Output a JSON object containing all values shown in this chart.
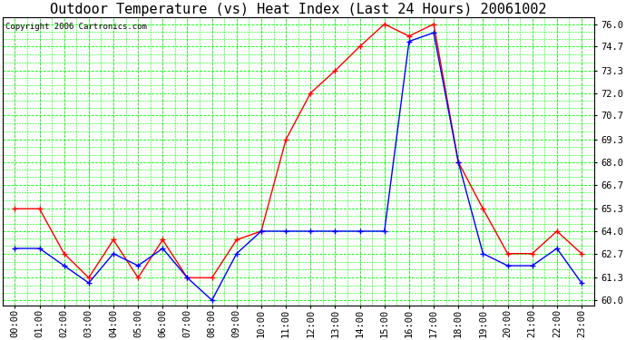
{
  "title": "Outdoor Temperature (vs) Heat Index (Last 24 Hours) 20061002",
  "copyright": "Copyright 2006 Cartronics.com",
  "x_labels": [
    "00:00",
    "01:00",
    "02:00",
    "03:00",
    "04:00",
    "05:00",
    "06:00",
    "07:00",
    "08:00",
    "09:00",
    "10:00",
    "11:00",
    "12:00",
    "13:00",
    "14:00",
    "15:00",
    "16:00",
    "17:00",
    "18:00",
    "19:00",
    "20:00",
    "21:00",
    "22:00",
    "23:00"
  ],
  "y_ticks": [
    60.0,
    61.3,
    62.7,
    64.0,
    65.3,
    66.7,
    68.0,
    69.3,
    70.7,
    72.0,
    73.3,
    74.7,
    76.0
  ],
  "ylim": [
    59.7,
    76.4
  ],
  "temp_color": "#0000FF",
  "heat_color": "#FF0000",
  "bg_color": "#FFFFFF",
  "grid_color": "#00FF00",
  "temp_data": [
    63.0,
    63.0,
    62.0,
    61.0,
    62.7,
    62.0,
    63.0,
    61.3,
    60.0,
    62.7,
    64.0,
    64.0,
    64.0,
    64.0,
    64.0,
    64.0,
    75.0,
    75.5,
    68.0,
    62.7,
    62.0,
    62.0,
    63.0,
    61.0
  ],
  "heat_data": [
    65.3,
    65.3,
    62.7,
    61.3,
    63.5,
    61.3,
    63.5,
    61.3,
    61.3,
    63.5,
    64.0,
    69.3,
    72.0,
    73.3,
    74.7,
    76.0,
    75.3,
    76.0,
    68.0,
    65.3,
    62.7,
    62.7,
    64.0,
    62.7
  ],
  "title_fontsize": 11,
  "tick_fontsize": 7.5,
  "copyright_fontsize": 6.5
}
